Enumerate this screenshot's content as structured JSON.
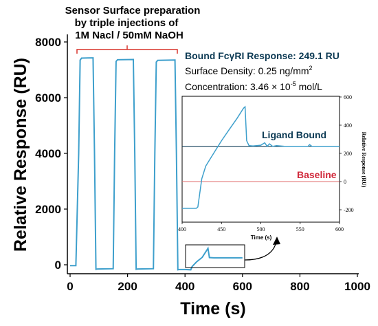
{
  "chart_data": [
    {
      "type": "line",
      "xlabel": "Time (s)",
      "ylabel": "Relative Response (RU)",
      "xlim": [
        0,
        1000
      ],
      "ylim": [
        -300,
        8000
      ],
      "x_ticks": [
        0,
        200,
        400,
        600,
        800,
        1000
      ],
      "y_ticks": [
        0,
        2000,
        4000,
        6000,
        8000
      ],
      "grid": false,
      "colors": {
        "series": "#3d9fcc",
        "axis": "#000000",
        "bracket": "#d9342b"
      },
      "annotations": {
        "preparation_note": [
          "Sensor Surface preparation",
          "by triple injections of",
          "1M Nacl / 50mM NaOH"
        ],
        "bound_response": "Bound FcγRI Response: 249.1 RU",
        "surface_density": "Surface Density: 0.25 ng/mm",
        "surface_density_sup": "2",
        "concentration": "Concentration: 3.46 × 10",
        "concentration_sup": "-5",
        "concentration_unit": " mol/L"
      },
      "series": [
        {
          "x": [
            0,
            20,
            30,
            35,
            40,
            80,
            85,
            90,
            95,
            150,
            155,
            160,
            165,
            220,
            225,
            230,
            235,
            290,
            295,
            300,
            305,
            365,
            370,
            375,
            380,
            400,
            420,
            425,
            440,
            460,
            480,
            485,
            500,
            520,
            540,
            560,
            600
          ],
          "y": [
            -30,
            -30,
            4000,
            7350,
            7420,
            7430,
            4000,
            -160,
            -150,
            -140,
            4000,
            7300,
            7360,
            7370,
            4000,
            -160,
            -150,
            -140,
            4000,
            7280,
            7340,
            7350,
            4000,
            -180,
            -170,
            -170,
            -180,
            -60,
            100,
            270,
            590,
            260,
            250,
            250,
            250,
            250,
            250
          ]
        }
      ]
    },
    {
      "type": "line",
      "xlabel": "Time (s)",
      "ylabel": "Relative Response (RU)",
      "xlim": [
        400,
        600
      ],
      "ylim": [
        -250,
        600
      ],
      "x_ticks": [
        400,
        450,
        500,
        550,
        600
      ],
      "y_ticks": [
        -200,
        0,
        200,
        400,
        600
      ],
      "grid": false,
      "reference_lines": [
        {
          "label": "Ligand Bound",
          "y": 249,
          "color": "#0b3953"
        },
        {
          "label": "Baseline",
          "y": 0,
          "color": "#e06b6b",
          "label_color": "#d0283a"
        }
      ],
      "series": [
        {
          "x": [
            400,
            418,
            420,
            425,
            430,
            440,
            450,
            460,
            470,
            478,
            480,
            482,
            485,
            490,
            500,
            505,
            508,
            511,
            515,
            520,
            530,
            560,
            562,
            565,
            600
          ],
          "y": [
            -190,
            -190,
            -180,
            20,
            110,
            200,
            290,
            370,
            450,
            520,
            530,
            290,
            255,
            252,
            258,
            275,
            250,
            268,
            250,
            255,
            250,
            250,
            262,
            250,
            250
          ]
        }
      ]
    }
  ]
}
